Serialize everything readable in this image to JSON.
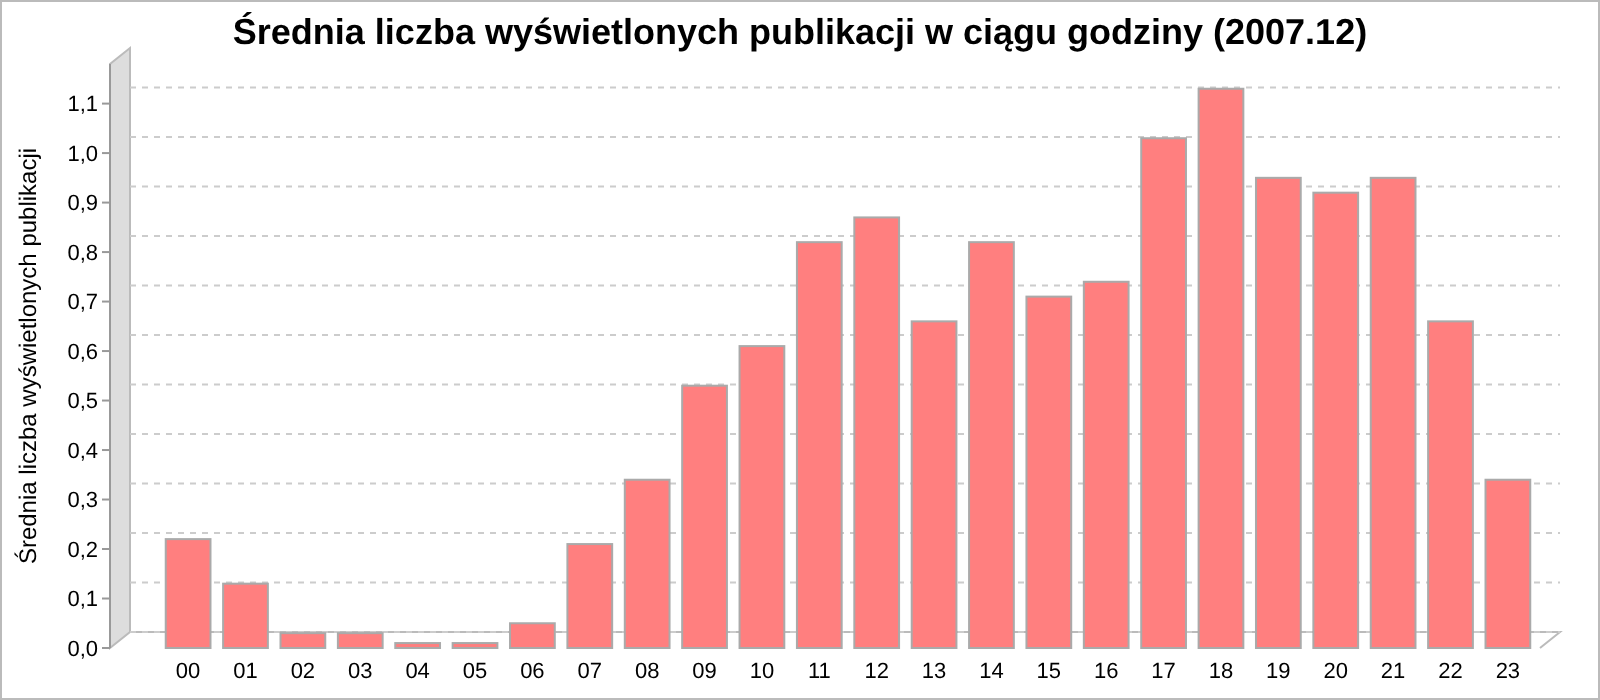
{
  "chart_data": {
    "type": "bar",
    "title": "Średnia liczba wyświetlonych publikacji w ciągu godziny (2007.12)",
    "ylabel": "Średnia liczba wyświetlonych publikacji",
    "categories": [
      "00",
      "01",
      "02",
      "03",
      "04",
      "05",
      "06",
      "07",
      "08",
      "09",
      "10",
      "11",
      "12",
      "13",
      "14",
      "15",
      "16",
      "17",
      "18",
      "19",
      "20",
      "21",
      "22",
      "23"
    ],
    "values": [
      0.22,
      0.13,
      0.03,
      0.03,
      0.01,
      0.01,
      0.05,
      0.21,
      0.34,
      0.53,
      0.61,
      0.82,
      0.87,
      0.66,
      0.82,
      0.71,
      0.74,
      1.03,
      1.13,
      0.95,
      0.92,
      0.95,
      0.66,
      0.34
    ],
    "color": "#ff7f7f",
    "ylim": [
      0,
      1.18
    ],
    "yticks": [
      {
        "value": 0,
        "label": "0,0"
      },
      {
        "value": 0.1,
        "label": "0,1"
      },
      {
        "value": 0.2,
        "label": "0,2"
      },
      {
        "value": 0.3,
        "label": "0,3"
      },
      {
        "value": 0.4,
        "label": "0,4"
      },
      {
        "value": 0.5,
        "label": "0,5"
      },
      {
        "value": 0.6,
        "label": "0,6"
      },
      {
        "value": 0.7,
        "label": "0,7"
      },
      {
        "value": 0.8,
        "label": "0,8"
      },
      {
        "value": 0.9,
        "label": "0,9"
      },
      {
        "value": 1.0,
        "label": "1,0"
      },
      {
        "value": 1.1,
        "label": "1,1"
      }
    ],
    "grid": "y"
  }
}
